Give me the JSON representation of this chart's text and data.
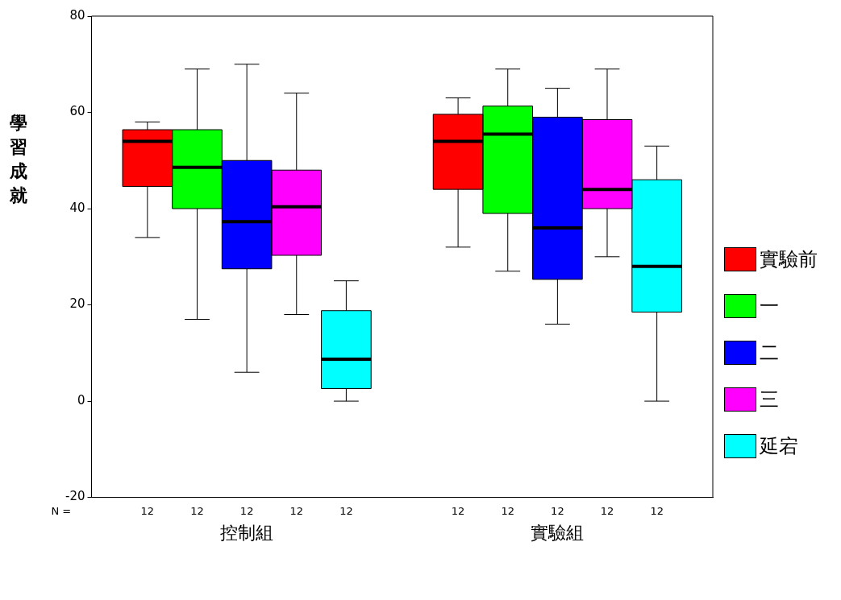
{
  "chart_data": {
    "type": "box",
    "ylabel": "學習成就",
    "categories": [
      "控制組",
      "實驗組"
    ],
    "ylim": [
      -20,
      80
    ],
    "yticks": [
      -20,
      0,
      20,
      40,
      60,
      80
    ],
    "grid": false,
    "legend": "right",
    "series": [
      {
        "name": "實驗前",
        "color": "#ff0000",
        "boxes": [
          {
            "low": 34,
            "q1": 44.6,
            "median": 54,
            "q3": 56.4,
            "high": 58
          },
          {
            "low": 32,
            "q1": 44,
            "median": 54,
            "q3": 59.6,
            "high": 63
          }
        ]
      },
      {
        "name": "一",
        "color": "#00ff00",
        "boxes": [
          {
            "low": 17,
            "q1": 40,
            "median": 48.6,
            "q3": 56.4,
            "high": 69
          },
          {
            "low": 27,
            "q1": 39,
            "median": 55.5,
            "q3": 61.3,
            "high": 69
          }
        ]
      },
      {
        "name": "二",
        "color": "#0000ff",
        "boxes": [
          {
            "low": 6,
            "q1": 27.5,
            "median": 37.3,
            "q3": 50,
            "high": 70
          },
          {
            "low": 16,
            "q1": 25.3,
            "median": 36,
            "q3": 59,
            "high": 65
          }
        ]
      },
      {
        "name": "三",
        "color": "#ff00ff",
        "boxes": [
          {
            "low": 18,
            "q1": 30.3,
            "median": 40.4,
            "q3": 48,
            "high": 64
          },
          {
            "low": 30,
            "q1": 40,
            "median": 44,
            "q3": 58.5,
            "high": 69
          }
        ]
      },
      {
        "name": "延宕",
        "color": "#00ffff",
        "boxes": [
          {
            "low": 0,
            "q1": 2.6,
            "median": 8.7,
            "q3": 18.8,
            "high": 25
          },
          {
            "low": 0,
            "q1": 18.5,
            "median": 28,
            "q3": 46,
            "high": 53
          }
        ]
      }
    ],
    "annotations": [
      "N =",
      "12",
      "12",
      "12",
      "12",
      "12",
      "12",
      "12",
      "12",
      "12",
      "12"
    ]
  }
}
